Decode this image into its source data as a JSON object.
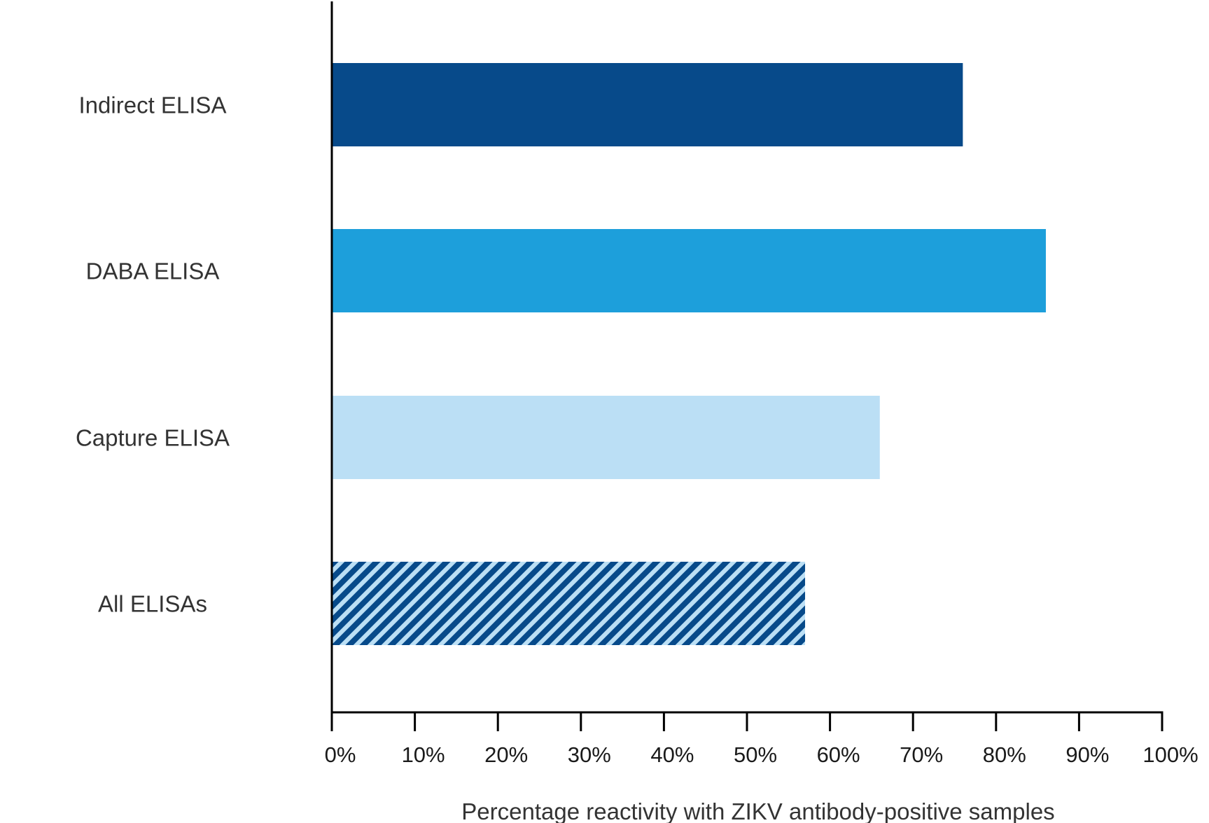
{
  "chart_data": {
    "type": "bar",
    "orientation": "horizontal",
    "title": "",
    "xlabel": "Percentage reactivity with ZIKV antibody-positive samples",
    "ylabel": "",
    "xlim": [
      0,
      100
    ],
    "grid": false,
    "categories": [
      "Indirect ELISA",
      "DABA ELISA",
      "Capture ELISA",
      "All ELISAs"
    ],
    "values": [
      76,
      86,
      66,
      57
    ],
    "colors": [
      "#074a8a",
      "#1d9fdb",
      "#bbdff5",
      "striped"
    ],
    "pattern_colors": [
      "#074a8a",
      "#bbdff5"
    ],
    "x_ticks": [
      0,
      10,
      20,
      30,
      40,
      50,
      60,
      70,
      80,
      90,
      100
    ],
    "x_tick_labels": [
      "0%",
      "10%",
      "20%",
      "30%",
      "40%",
      "50%",
      "60%",
      "70%",
      "80%",
      "90%",
      "100%"
    ]
  }
}
